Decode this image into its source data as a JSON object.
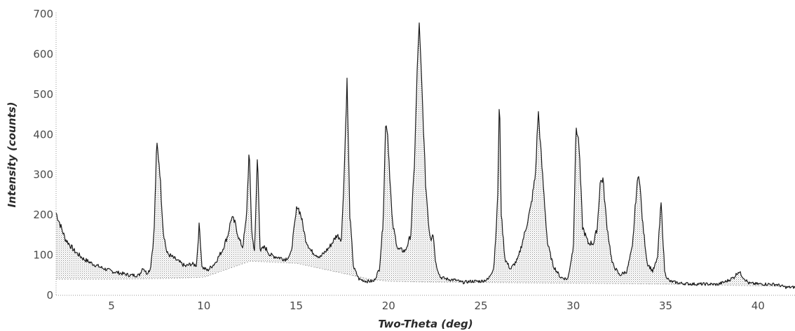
{
  "chart_data": {
    "type": "area",
    "title": "",
    "xlabel": "Two-Theta (deg)",
    "ylabel": "Intensity (counts)",
    "xlim": [
      2,
      42
    ],
    "ylim": [
      0,
      700
    ],
    "xticks": [
      5,
      10,
      15,
      20,
      25,
      30,
      35,
      40
    ],
    "yticks": [
      0,
      100,
      200,
      300,
      400,
      500,
      600,
      700
    ],
    "grid": false,
    "legend": "none",
    "series": [
      {
        "role": "pattern",
        "color": "#1a1a1a",
        "fill": "dotted-gray",
        "x": [
          2.0,
          2.5,
          3.0,
          3.5,
          4.0,
          4.5,
          5.0,
          5.5,
          6.0,
          6.5,
          6.7,
          6.9,
          7.1,
          7.3,
          7.45,
          7.6,
          7.8,
          8.0,
          8.3,
          8.6,
          9.0,
          9.3,
          9.6,
          9.75,
          9.9,
          10.2,
          10.6,
          11.0,
          11.3,
          11.5,
          11.7,
          11.9,
          12.1,
          12.3,
          12.45,
          12.6,
          12.75,
          12.9,
          13.05,
          13.3,
          13.6,
          14.0,
          14.4,
          14.7,
          14.9,
          15.05,
          15.25,
          15.5,
          15.8,
          16.3,
          16.8,
          17.2,
          17.45,
          17.6,
          17.75,
          17.9,
          18.1,
          18.4,
          18.8,
          19.2,
          19.5,
          19.7,
          19.85,
          19.95,
          20.2,
          20.5,
          20.9,
          21.2,
          21.4,
          21.55,
          21.65,
          21.8,
          22.0,
          22.2,
          22.3,
          22.4,
          22.55,
          22.8,
          23.2,
          23.6,
          24.0,
          24.5,
          25.0,
          25.4,
          25.7,
          25.9,
          26.0,
          26.1,
          26.3,
          26.6,
          27.0,
          27.4,
          27.7,
          27.95,
          28.1,
          28.3,
          28.6,
          28.9,
          29.3,
          29.7,
          30.0,
          30.15,
          30.3,
          30.5,
          30.8,
          31.1,
          31.3,
          31.45,
          31.6,
          31.8,
          32.1,
          32.5,
          32.9,
          33.2,
          33.4,
          33.55,
          33.75,
          34.0,
          34.3,
          34.55,
          34.75,
          34.95,
          35.2,
          35.8,
          36.5,
          37.2,
          37.8,
          38.3,
          38.7,
          38.95,
          39.2,
          39.5,
          40.0,
          40.5,
          41.0,
          41.5,
          42.0
        ],
        "y": [
          205,
          140,
          110,
          90,
          78,
          68,
          60,
          55,
          50,
          50,
          70,
          55,
          65,
          150,
          380,
          320,
          160,
          105,
          95,
          85,
          72,
          78,
          75,
          178,
          70,
          62,
          80,
          112,
          150,
          195,
          178,
          140,
          120,
          190,
          360,
          150,
          110,
          350,
          110,
          120,
          100,
          95,
          90,
          100,
          170,
          225,
          200,
          140,
          110,
          95,
          120,
          150,
          140,
          310,
          535,
          200,
          70,
          40,
          35,
          35,
          65,
          180,
          440,
          400,
          180,
          115,
          110,
          150,
          330,
          560,
          680,
          520,
          280,
          160,
          140,
          160,
          80,
          45,
          40,
          38,
          32,
          35,
          35,
          40,
          70,
          230,
          500,
          200,
          90,
          65,
          90,
          160,
          220,
          300,
          460,
          320,
          130,
          75,
          45,
          40,
          120,
          420,
          380,
          170,
          130,
          130,
          170,
          280,
          290,
          180,
          80,
          50,
          60,
          120,
          250,
          310,
          180,
          80,
          60,
          90,
          230,
          55,
          35,
          30,
          28,
          28,
          27,
          35,
          45,
          60,
          45,
          30,
          28,
          28,
          27,
          20,
          20
        ]
      },
      {
        "role": "background",
        "color": "#9a9a9a",
        "style": "dotted",
        "x": [
          2.0,
          5.0,
          8.0,
          10.0,
          12.5,
          15.0,
          17.0,
          19.0,
          20.0,
          22.0,
          25.0,
          30.0,
          35.0,
          42.0
        ],
        "y": [
          40,
          40,
          42,
          45,
          85,
          80,
          60,
          40,
          35,
          33,
          32,
          30,
          28,
          22
        ]
      }
    ]
  }
}
